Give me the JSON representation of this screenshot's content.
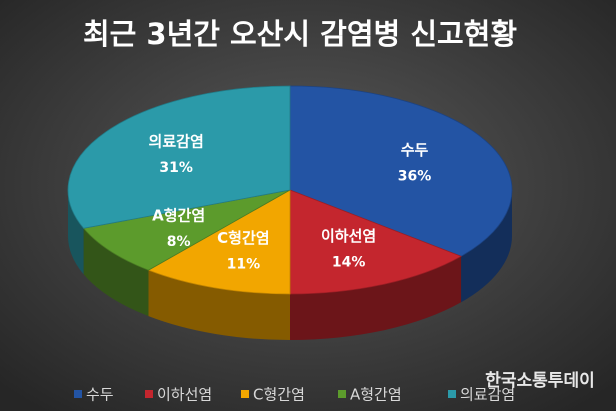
{
  "chart_data": {
    "type": "pie3d",
    "title": "최근 3년간 오산시 감염병 신고현황",
    "categories": [
      "수두",
      "이하선염",
      "C형간염",
      "A형간염",
      "의료감염"
    ],
    "values": [
      36,
      14,
      11,
      8,
      31
    ],
    "value_labels": [
      "36%",
      "14%",
      "11%",
      "8%",
      "31%"
    ],
    "colors": [
      "#2354a4",
      "#c4262e",
      "#f2a600",
      "#5c9b2c",
      "#2b9aa9"
    ],
    "legend": "bottom"
  },
  "watermark": "한국소통투데이"
}
